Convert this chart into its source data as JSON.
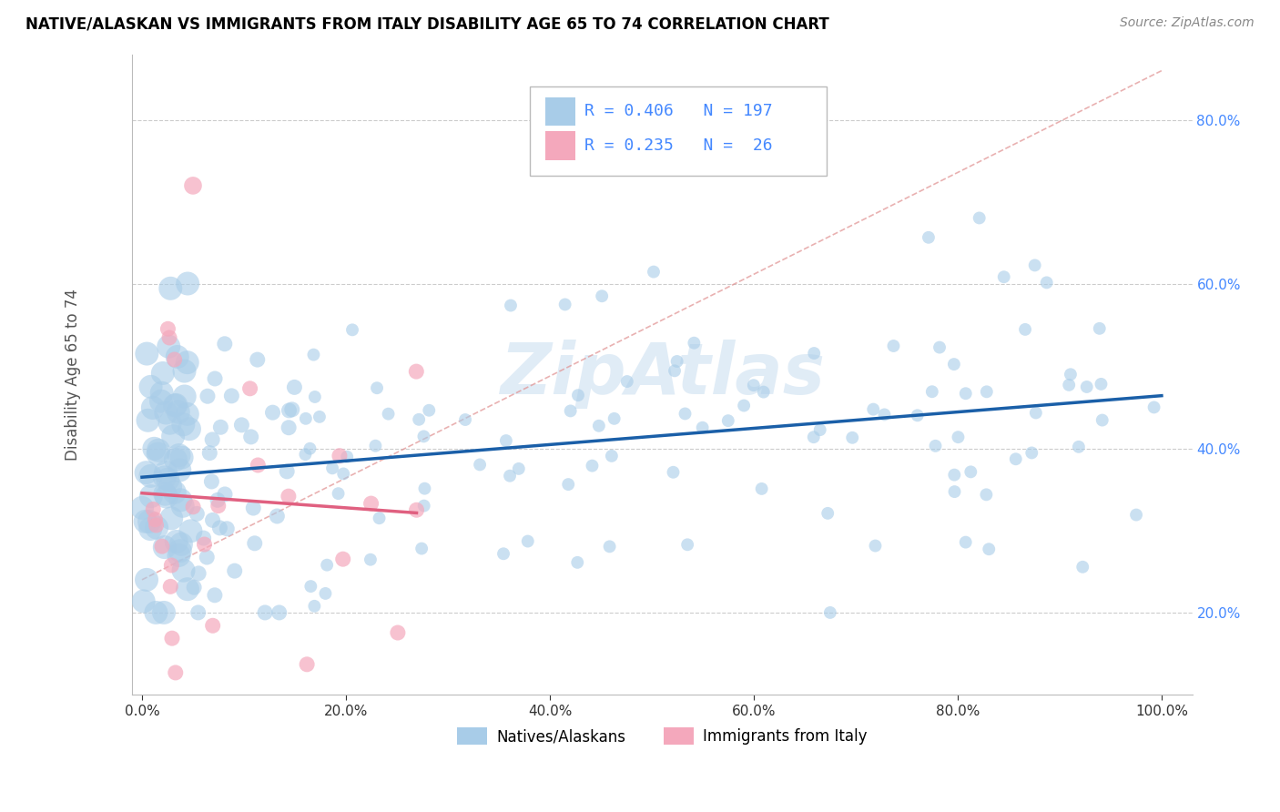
{
  "title": "NATIVE/ALASKAN VS IMMIGRANTS FROM ITALY DISABILITY AGE 65 TO 74 CORRELATION CHART",
  "source": "Source: ZipAtlas.com",
  "ylabel": "Disability Age 65 to 74",
  "xlim": [
    -0.01,
    1.03
  ],
  "ylim": [
    0.1,
    0.88
  ],
  "xtick_vals": [
    0.0,
    0.2,
    0.4,
    0.6,
    0.8,
    1.0
  ],
  "ytick_vals": [
    0.2,
    0.4,
    0.6,
    0.8
  ],
  "native_color": "#a8cce8",
  "immigrant_color": "#f4a8bc",
  "native_line_color": "#1a5fa8",
  "immigrant_line_color": "#e06080",
  "ref_line_color": "#e09090",
  "R_native": 0.406,
  "N_native": 197,
  "R_immigrant": 0.235,
  "N_immigrant": 26,
  "legend_labels": [
    "Natives/Alaskans",
    "Immigrants from Italy"
  ],
  "watermark": "ZipAtlas",
  "legend_text_color": "#4488ff",
  "tick_color": "#4488ff"
}
